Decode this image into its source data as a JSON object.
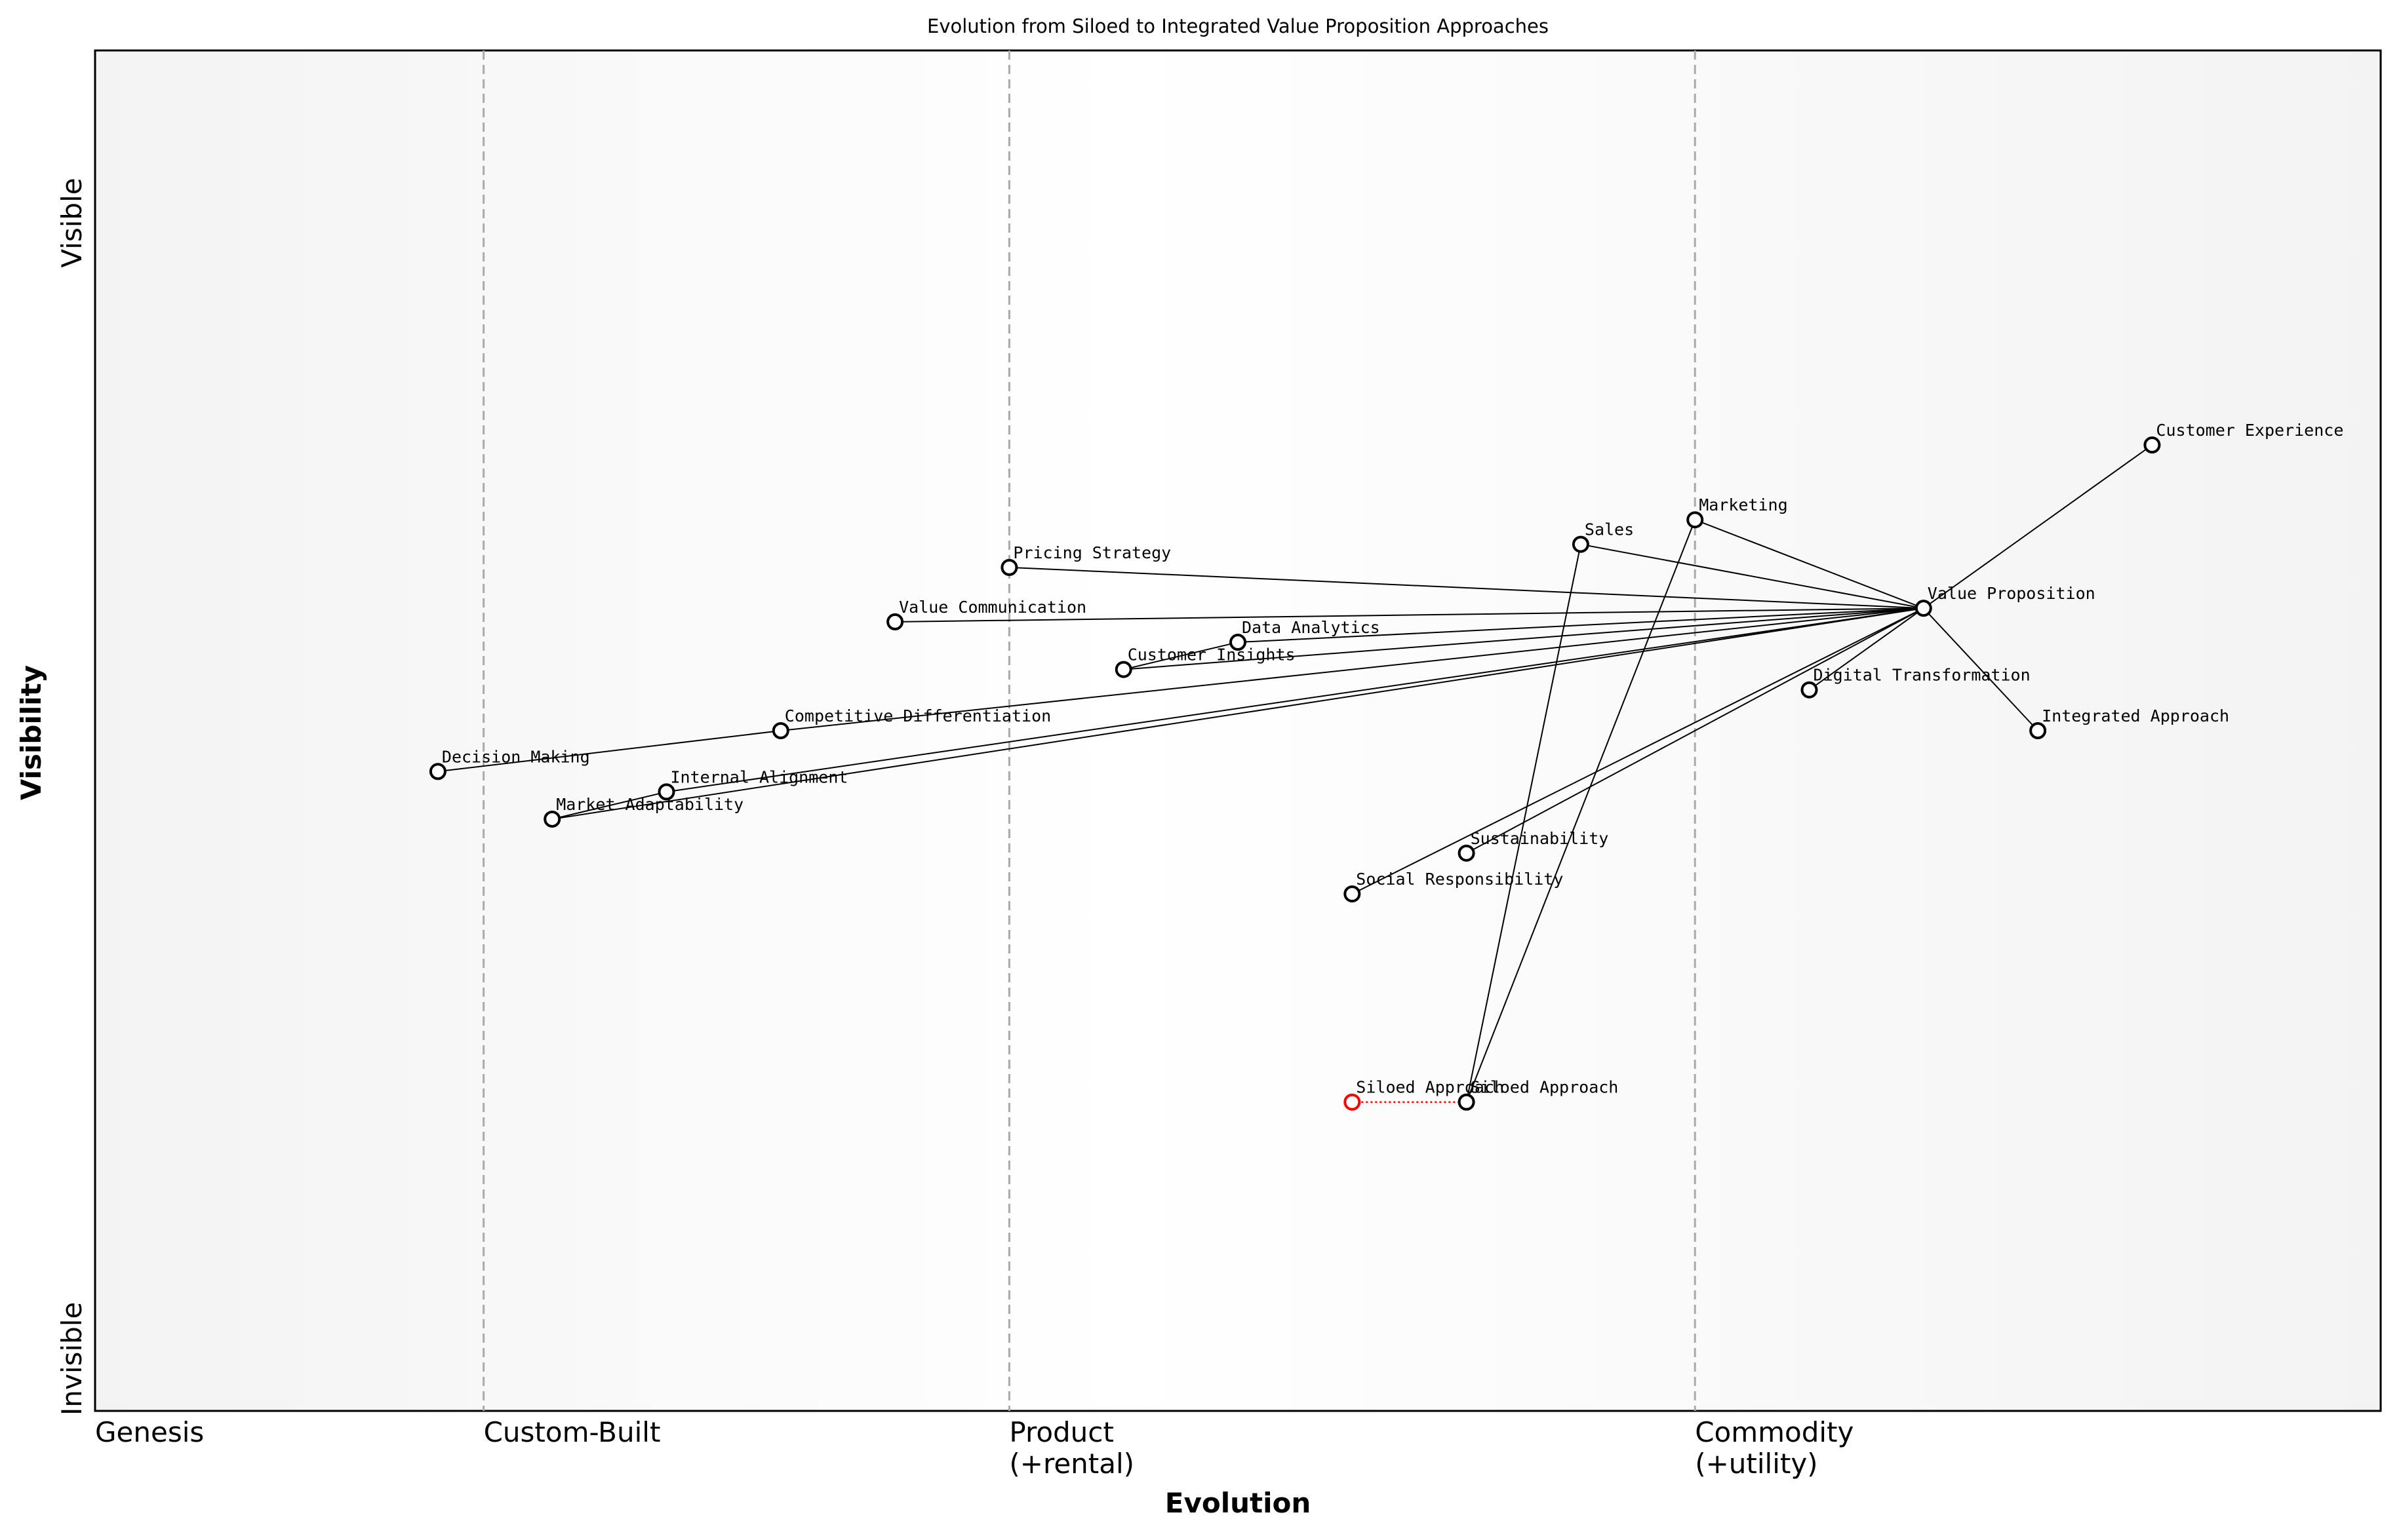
{
  "title": "Evolution from Siloed to Integrated Value Proposition Approaches",
  "axes": {
    "x_title": "Evolution",
    "y_title": "Visibility",
    "y_top": "Visible",
    "y_bottom": "Invisible"
  },
  "stages": [
    {
      "lines": [
        "Genesis"
      ],
      "value": 0
    },
    {
      "lines": [
        "Custom-Built"
      ],
      "value": 0.17
    },
    {
      "lines": [
        "Product",
        "(+rental)"
      ],
      "value": 0.4
    },
    {
      "lines": [
        "Commodity",
        "(+utility)"
      ],
      "value": 0.7
    }
  ],
  "node_color": "#000000",
  "nodes": [
    {
      "name": "Customer Experience",
      "evolution": 0.9,
      "visibility": 0.71
    },
    {
      "name": "Marketing",
      "evolution": 0.7,
      "visibility": 0.655
    },
    {
      "name": "Sales",
      "evolution": 0.65,
      "visibility": 0.637
    },
    {
      "name": "Value Proposition",
      "evolution": 0.8,
      "visibility": 0.59
    },
    {
      "name": "Pricing Strategy",
      "evolution": 0.4,
      "visibility": 0.62
    },
    {
      "name": "Value Communication",
      "evolution": 0.35,
      "visibility": 0.58
    },
    {
      "name": "Data Analytics",
      "evolution": 0.5,
      "visibility": 0.565
    },
    {
      "name": "Customer Insights",
      "evolution": 0.45,
      "visibility": 0.545
    },
    {
      "name": "Digital Transformation",
      "evolution": 0.75,
      "visibility": 0.53
    },
    {
      "name": "Integrated Approach",
      "evolution": 0.85,
      "visibility": 0.5
    },
    {
      "name": "Competitive Differentiation",
      "evolution": 0.3,
      "visibility": 0.5
    },
    {
      "name": "Decision Making",
      "evolution": 0.15,
      "visibility": 0.47
    },
    {
      "name": "Internal Alignment",
      "evolution": 0.25,
      "visibility": 0.455
    },
    {
      "name": "Market Adaptability",
      "evolution": 0.2,
      "visibility": 0.435
    },
    {
      "name": "Sustainability",
      "evolution": 0.6,
      "visibility": 0.41
    },
    {
      "name": "Social Responsibility",
      "evolution": 0.55,
      "visibility": 0.38
    },
    {
      "name": "Siloed Approach",
      "evolution": 0.6,
      "visibility": 0.227
    },
    {
      "name": "Siloed Approach",
      "evolution": 0.55,
      "visibility": 0.227,
      "color": "#ff0000"
    }
  ],
  "links": [
    [
      3,
      0
    ],
    [
      3,
      1
    ],
    [
      3,
      2
    ],
    [
      3,
      4
    ],
    [
      3,
      5
    ],
    [
      3,
      6
    ],
    [
      6,
      7
    ],
    [
      3,
      7
    ],
    [
      3,
      8
    ],
    [
      3,
      9
    ],
    [
      3,
      10
    ],
    [
      10,
      11
    ],
    [
      3,
      12
    ],
    [
      12,
      13
    ],
    [
      3,
      13
    ],
    [
      3,
      14
    ],
    [
      3,
      15
    ],
    [
      16,
      2
    ],
    [
      16,
      1
    ]
  ],
  "evolve": [
    [
      17,
      16
    ]
  ],
  "evolve_color": "#ff0000"
}
